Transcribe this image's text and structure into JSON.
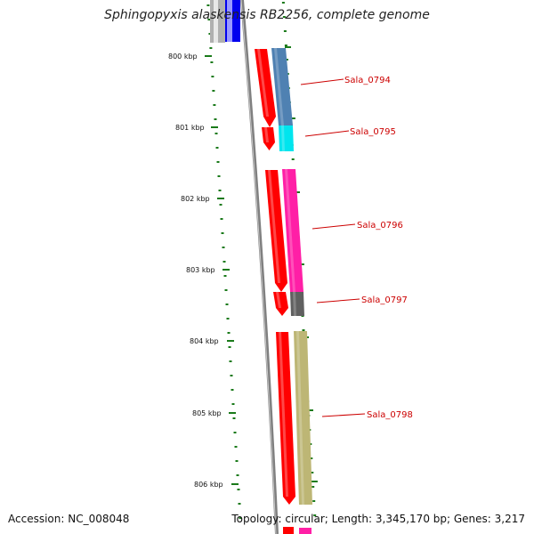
{
  "title": "Sphingopyxis alaskensis RB2256, complete genome",
  "accession_text": "Accession: NC_008048",
  "summary_text": "Topology: circular; Length: 3,345,170 bp; Genes: 3,217",
  "ruler": {
    "labels": [
      "800 kbp",
      "801 kbp",
      "802 kbp",
      "803 kbp",
      "804 kbp",
      "805 kbp",
      "806 kbp"
    ],
    "color": "#1a7a1a"
  },
  "genes": [
    {
      "label": "Sala_0794",
      "color": "#4f81b2",
      "orf_color": "#ff0000"
    },
    {
      "label": "Sala_0795",
      "color": "#00e5ee",
      "orf_color": "#ff0000"
    },
    {
      "label": "Sala_0796",
      "color": "#ff1fa6",
      "orf_color": "#ff0000"
    },
    {
      "label": "Sala_0797",
      "color": "#606060",
      "orf_color": "#ff0000"
    },
    {
      "label": "Sala_0798",
      "color": "#bdb675",
      "orf_color": "#ff0000"
    }
  ],
  "colors": {
    "backbone": "#808080",
    "label_line": "#cc0000",
    "top_gene_blue": "#0000ee",
    "top_gene_gray": "#b0b0b0"
  }
}
